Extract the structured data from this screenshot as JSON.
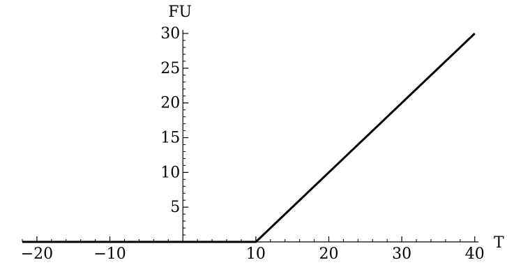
{
  "chart_data": {
    "type": "line",
    "title": "",
    "xlabel": "T",
    "ylabel": "FU",
    "xlim": [
      -22,
      40.5
    ],
    "ylim": [
      0,
      30.5
    ],
    "grid": false,
    "x_ticks": [
      -20,
      -10,
      10,
      20,
      30,
      40
    ],
    "x_tick_labels": [
      "−20",
      "−10",
      "10",
      "20",
      "30",
      "40"
    ],
    "y_ticks": [
      5,
      10,
      15,
      20,
      25,
      30
    ],
    "y_tick_labels": [
      "5",
      "10",
      "15",
      "20",
      "25",
      "30"
    ],
    "series": [
      {
        "x": [
          -22,
          10,
          40
        ],
        "y": [
          0,
          0,
          30
        ],
        "color": "#000000"
      }
    ]
  }
}
